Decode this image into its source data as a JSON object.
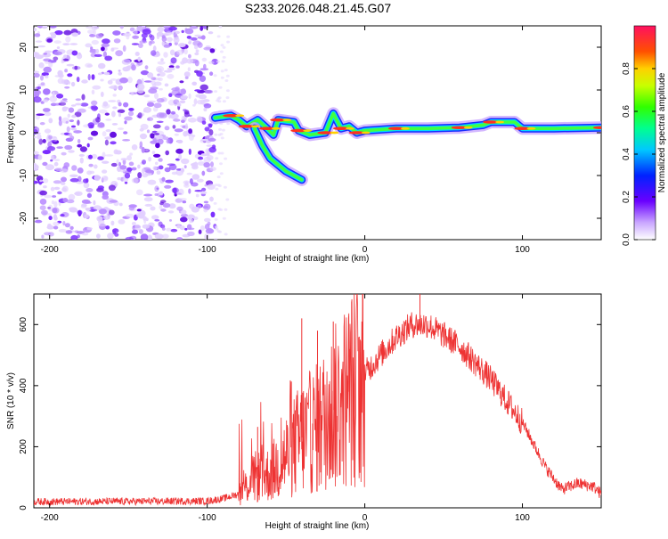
{
  "title": "S233.2026.048.21.45.G07",
  "chart_data": [
    {
      "type": "heatmap",
      "xlabel": "Height of straight line (km)",
      "ylabel": "Frequency (Hz)",
      "xlim": [
        -210,
        150
      ],
      "ylim": [
        -25,
        25
      ],
      "xticks": [
        -200,
        -100,
        0,
        100
      ],
      "yticks": [
        -20,
        -10,
        0,
        10,
        20
      ],
      "noise_region": {
        "x": [
          -210,
          -95
        ],
        "y": [
          -25,
          25
        ]
      },
      "signal_track": [
        {
          "x": -95,
          "y": 3.5
        },
        {
          "x": -85,
          "y": 4
        },
        {
          "x": -80,
          "y": 3
        },
        {
          "x": -75,
          "y": 1.5
        },
        {
          "x": -68,
          "y": 3
        },
        {
          "x": -62,
          "y": 1
        },
        {
          "x": -58,
          "y": -0.5
        },
        {
          "x": -55,
          "y": 3
        },
        {
          "x": -45,
          "y": 2.5
        },
        {
          "x": -42,
          "y": 0.5
        },
        {
          "x": -35,
          "y": -0.5
        },
        {
          "x": -25,
          "y": 0
        },
        {
          "x": -20,
          "y": 4.5
        },
        {
          "x": -15,
          "y": 1
        },
        {
          "x": -10,
          "y": 1.5
        },
        {
          "x": -5,
          "y": 0
        },
        {
          "x": 0,
          "y": 0.5
        },
        {
          "x": 20,
          "y": 1
        },
        {
          "x": 40,
          "y": 1
        },
        {
          "x": 60,
          "y": 1.2
        },
        {
          "x": 75,
          "y": 1.8
        },
        {
          "x": 80,
          "y": 2.5
        },
        {
          "x": 95,
          "y": 2.5
        },
        {
          "x": 100,
          "y": 1
        },
        {
          "x": 120,
          "y": 1
        },
        {
          "x": 150,
          "y": 1.2
        }
      ],
      "branch_track": [
        {
          "x": -70,
          "y": 1
        },
        {
          "x": -65,
          "y": -3
        },
        {
          "x": -60,
          "y": -6
        },
        {
          "x": -50,
          "y": -9
        },
        {
          "x": -40,
          "y": -11
        }
      ],
      "colorbar": {
        "label": "Normalized spectral amplitude",
        "range": [
          0,
          1
        ],
        "ticks": [
          "0.0",
          "0.2",
          "0.4",
          "0.6",
          "0.8"
        ]
      }
    },
    {
      "type": "line",
      "xlabel": "Height of straight line (km)",
      "ylabel": "SNR (10 * v/v)",
      "xlim": [
        -210,
        150
      ],
      "ylim": [
        0,
        700
      ],
      "xticks": [
        -200,
        -100,
        0,
        100
      ],
      "yticks": [
        0,
        200,
        400,
        600
      ],
      "series_color": "#ee3333",
      "envelope": [
        {
          "x": -210,
          "y": 20
        },
        {
          "x": -100,
          "y": 22
        },
        {
          "x": -90,
          "y": 30
        },
        {
          "x": -80,
          "y": 45
        },
        {
          "x": -70,
          "y": 100
        },
        {
          "x": -60,
          "y": 110
        },
        {
          "x": -50,
          "y": 170
        },
        {
          "x": -40,
          "y": 230
        },
        {
          "x": -30,
          "y": 260
        },
        {
          "x": -20,
          "y": 320
        },
        {
          "x": -10,
          "y": 380
        },
        {
          "x": 0,
          "y": 440
        },
        {
          "x": 10,
          "y": 500
        },
        {
          "x": 20,
          "y": 560
        },
        {
          "x": 30,
          "y": 600
        },
        {
          "x": 40,
          "y": 600
        },
        {
          "x": 60,
          "y": 530
        },
        {
          "x": 80,
          "y": 420
        },
        {
          "x": 100,
          "y": 280
        },
        {
          "x": 115,
          "y": 130
        },
        {
          "x": 125,
          "y": 60
        },
        {
          "x": 135,
          "y": 80
        },
        {
          "x": 145,
          "y": 70
        },
        {
          "x": 150,
          "y": 45
        }
      ],
      "spikes": [
        {
          "x": -68,
          "y": 265
        },
        {
          "x": -40,
          "y": 620
        },
        {
          "x": -30,
          "y": 580
        },
        {
          "x": -20,
          "y": 610
        },
        {
          "x": -10,
          "y": 520
        },
        {
          "x": 35,
          "y": 700
        }
      ]
    }
  ]
}
